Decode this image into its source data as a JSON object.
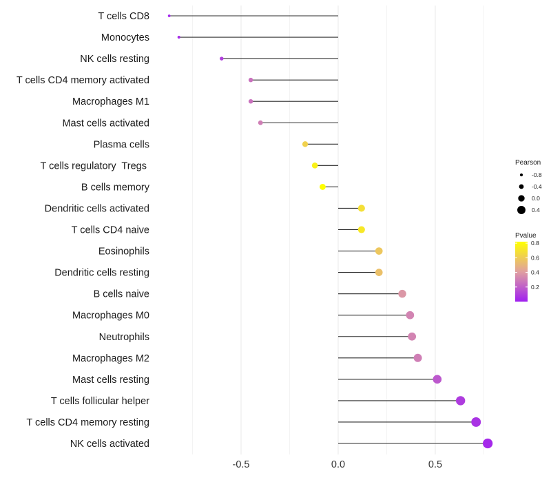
{
  "chart_data": {
    "type": "lollipop",
    "title": "",
    "xlabel": "",
    "ylabel": "",
    "xlim": [
      -0.87,
      0.78
    ],
    "x_ticks": [
      -0.5,
      0.0,
      0.5
    ],
    "x_tick_labels": [
      "-0.5",
      "0.0",
      "0.5"
    ],
    "grid": true,
    "categories": [
      "T cells CD8",
      "Monocytes",
      "NK cells resting",
      "T cells CD4 memory activated",
      "Macrophages M1",
      "Mast cells activated",
      "Plasma cells",
      "T cells regulatory  Tregs ",
      "B cells memory",
      "Dendritic cells activated",
      "T cells CD4 naive",
      "Eosinophils",
      "Dendritic cells resting",
      "B cells naive",
      "Macrophages M0",
      "Neutrophils",
      "Macrophages M2",
      "Mast cells resting",
      "T cells follicular helper",
      "T cells CD4 memory resting",
      "NK cells activated"
    ],
    "values": [
      -0.87,
      -0.82,
      -0.6,
      -0.45,
      -0.45,
      -0.4,
      -0.17,
      -0.12,
      -0.08,
      0.12,
      0.12,
      0.21,
      0.21,
      0.33,
      0.37,
      0.38,
      0.41,
      0.51,
      0.63,
      0.71,
      0.77
    ],
    "pvalues": [
      0.02,
      0.04,
      0.1,
      0.26,
      0.26,
      0.3,
      0.62,
      0.76,
      0.86,
      0.68,
      0.72,
      0.58,
      0.55,
      0.38,
      0.32,
      0.32,
      0.3,
      0.18,
      0.09,
      0.06,
      0.03
    ],
    "legend": {
      "position": "right",
      "size_title": "Pearson",
      "size_entries": [
        {
          "label": "-0.8",
          "value": -0.8
        },
        {
          "label": "-0.4",
          "value": -0.4
        },
        {
          "label": "0.0",
          "value": 0.0
        },
        {
          "label": "0.4",
          "value": 0.4
        }
      ],
      "color_title": "Pvalue",
      "color_ticks": [
        {
          "label": "0.8",
          "value": 0.8
        },
        {
          "label": "0.6",
          "value": 0.6
        },
        {
          "label": "0.4",
          "value": 0.4
        },
        {
          "label": "0.2",
          "value": 0.2
        }
      ],
      "color_range": [
        0.0,
        0.82
      ],
      "color_low": "#a020f0",
      "color_mid": "#e0a0a0",
      "color_high": "#ffff00"
    },
    "colors": {
      "stem": "#2b2b2b",
      "grid": "#ebebeb"
    }
  }
}
